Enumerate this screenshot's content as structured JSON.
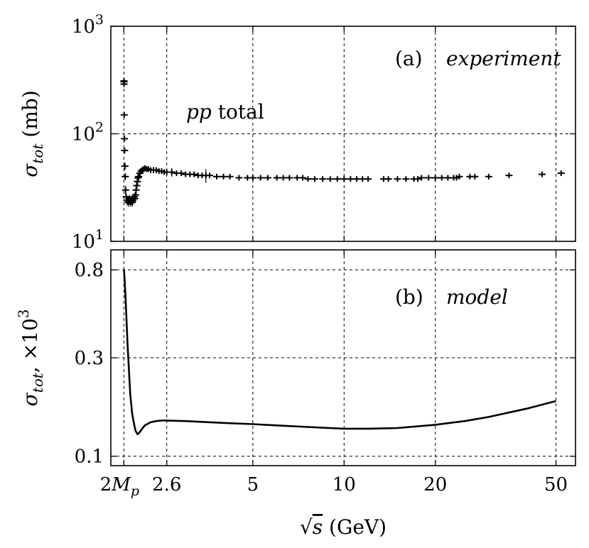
{
  "chart_data": [
    {
      "type": "scatter",
      "panel_label": "(a)",
      "panel_note": "experiment",
      "annotation": {
        "prefix": "pp",
        "suffix": " total"
      },
      "ylabel": {
        "sym": "σ",
        "sub": "tot",
        "unit": " (mb)"
      },
      "yscale": "log",
      "ylim": [
        10,
        1000
      ],
      "yticks": [
        {
          "base": "10",
          "exp": "1",
          "value": 10
        },
        {
          "base": "10",
          "exp": "2",
          "value": 100
        },
        {
          "base": "10",
          "exp": "3",
          "value": 1000
        }
      ],
      "grid": true,
      "points": [
        [
          1.878,
          310,
          12
        ],
        [
          1.879,
          305,
          12
        ],
        [
          1.88,
          290,
          10
        ],
        [
          1.882,
          150,
          7
        ],
        [
          1.885,
          90,
          5
        ],
        [
          1.888,
          70,
          4
        ],
        [
          1.892,
          50,
          4
        ],
        [
          1.897,
          40,
          3
        ],
        [
          1.902,
          30,
          3
        ],
        [
          1.91,
          26,
          2
        ],
        [
          1.92,
          24,
          2
        ],
        [
          1.93,
          24,
          2
        ],
        [
          1.94,
          23,
          2
        ],
        [
          1.95,
          24,
          2
        ],
        [
          1.96,
          25,
          2
        ],
        [
          1.97,
          23,
          2
        ],
        [
          1.98,
          24,
          2
        ],
        [
          1.99,
          24,
          2
        ],
        [
          2.0,
          23,
          2
        ],
        [
          2.01,
          24,
          2
        ],
        [
          2.02,
          25,
          2
        ],
        [
          2.03,
          26,
          2
        ],
        [
          2.04,
          25,
          2
        ],
        [
          2.05,
          27,
          2
        ],
        [
          2.06,
          30,
          3
        ],
        [
          2.07,
          33,
          3
        ],
        [
          2.08,
          36,
          3
        ],
        [
          2.09,
          39,
          3
        ],
        [
          2.1,
          40,
          3
        ],
        [
          2.12,
          43,
          3
        ],
        [
          2.14,
          45,
          3
        ],
        [
          2.16,
          46,
          3
        ],
        [
          2.18,
          47,
          3
        ],
        [
          2.2,
          48,
          3
        ],
        [
          2.23,
          47,
          3
        ],
        [
          2.26,
          47,
          3
        ],
        [
          2.3,
          46,
          3
        ],
        [
          2.35,
          46,
          3
        ],
        [
          2.4,
          46,
          3
        ],
        [
          2.45,
          45,
          2
        ],
        [
          2.5,
          45,
          2
        ],
        [
          2.55,
          44,
          2
        ],
        [
          2.6,
          44,
          2
        ],
        [
          2.7,
          44,
          4
        ],
        [
          2.8,
          43,
          2
        ],
        [
          2.9,
          43,
          2
        ],
        [
          3.0,
          42,
          2
        ],
        [
          3.1,
          42,
          2
        ],
        [
          3.2,
          42,
          2
        ],
        [
          3.3,
          41,
          2
        ],
        [
          3.4,
          41,
          2
        ],
        [
          3.5,
          41,
          6
        ],
        [
          3.6,
          41,
          2
        ],
        [
          3.8,
          40,
          2
        ],
        [
          4.0,
          40,
          2
        ],
        [
          4.2,
          40,
          2
        ],
        [
          4.5,
          39,
          2
        ],
        [
          4.8,
          39,
          2
        ],
        [
          5.0,
          39,
          2
        ],
        [
          5.3,
          39,
          2
        ],
        [
          5.6,
          39,
          2
        ],
        [
          6.0,
          39,
          2
        ],
        [
          6.3,
          39,
          2
        ],
        [
          6.6,
          39,
          2
        ],
        [
          7.0,
          39,
          2
        ],
        [
          7.3,
          39,
          2
        ],
        [
          7.6,
          38,
          2
        ],
        [
          8.0,
          38,
          2
        ],
        [
          8.5,
          38,
          2
        ],
        [
          9.0,
          38,
          2
        ],
        [
          9.5,
          38,
          2
        ],
        [
          10.0,
          38,
          2
        ],
        [
          10.5,
          38,
          2
        ],
        [
          11.0,
          38,
          2
        ],
        [
          11.5,
          38,
          2
        ],
        [
          12.0,
          38,
          2
        ],
        [
          13.5,
          38,
          2
        ],
        [
          14.0,
          38,
          2
        ],
        [
          15.0,
          38,
          2
        ],
        [
          16.0,
          38,
          2
        ],
        [
          17.0,
          38,
          2
        ],
        [
          17.5,
          38,
          2
        ],
        [
          18.0,
          39,
          2
        ],
        [
          19.0,
          39,
          2
        ],
        [
          20.0,
          39,
          2
        ],
        [
          21.0,
          39,
          2
        ],
        [
          22.0,
          39,
          2
        ],
        [
          23.0,
          39,
          2
        ],
        [
          23.5,
          39,
          2
        ],
        [
          24.0,
          40,
          2
        ],
        [
          26.0,
          40,
          2
        ],
        [
          27.0,
          40,
          2
        ],
        [
          30.0,
          40,
          2
        ],
        [
          35.0,
          41,
          2
        ],
        [
          45.0,
          42,
          2
        ],
        [
          52.0,
          43,
          2
        ]
      ]
    },
    {
      "type": "line",
      "panel_label": "(b)",
      "panel_note": "model",
      "ylabel": {
        "sym": "σ",
        "sub": "tot",
        "unit": ", ×10",
        "exp": "3"
      },
      "yscale": "log",
      "ylim": [
        0.09,
        1.0
      ],
      "yticks": [
        {
          "label": "0.1",
          "value": 0.1
        },
        {
          "label": "0.3",
          "value": 0.3
        },
        {
          "label": "0.8",
          "value": 0.8
        }
      ],
      "grid": true,
      "x": [
        1.88,
        1.9,
        1.93,
        1.97,
        2.0,
        2.03,
        2.05,
        2.08,
        2.1,
        2.15,
        2.2,
        2.3,
        2.4,
        2.5,
        2.6,
        3.0,
        4.0,
        5.0,
        6.0,
        8.0,
        10.0,
        12.0,
        15.0,
        20.0,
        25.0,
        30.0,
        40.0,
        50.0
      ],
      "y": [
        0.8,
        0.6,
        0.35,
        0.2,
        0.16,
        0.142,
        0.133,
        0.128,
        0.129,
        0.135,
        0.141,
        0.146,
        0.148,
        0.149,
        0.149,
        0.148,
        0.145,
        0.143,
        0.141,
        0.138,
        0.136,
        0.136,
        0.137,
        0.142,
        0.148,
        0.155,
        0.17,
        0.185
      ]
    }
  ],
  "x_axis": {
    "label": {
      "rad": "√",
      "var": "s",
      "unit": " (GeV)"
    },
    "scale": "log",
    "xlim": [
      1.7,
      58
    ],
    "ticks": [
      {
        "label": "2M",
        "sub": "p",
        "value": 1.877
      },
      {
        "label": "2.6",
        "value": 2.6
      },
      {
        "label": "5",
        "value": 5
      },
      {
        "label": "10",
        "value": 10
      },
      {
        "label": "20",
        "value": 20
      },
      {
        "label": "50",
        "value": 50
      }
    ]
  }
}
